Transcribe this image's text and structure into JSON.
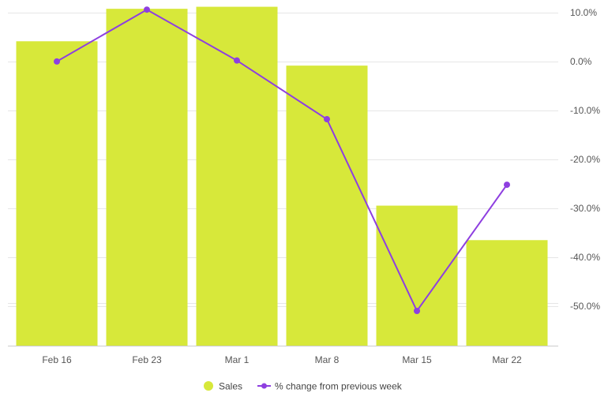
{
  "chart_data": {
    "type": "bar",
    "categories": [
      "Feb 16",
      "Feb 23",
      "Mar 1",
      "Mar 8",
      "Mar 15",
      "Mar 22"
    ],
    "series": [
      {
        "name": "Sales",
        "type": "bar",
        "color": "#d7e83a",
        "values": [
          7.5,
          8.3,
          8.35,
          6.9,
          3.45,
          2.6
        ]
      },
      {
        "name": "% change from previous week",
        "type": "line",
        "axis": "right",
        "color": "#8e3fe0",
        "values": [
          0.0,
          10.6,
          0.2,
          -11.8,
          -51.0,
          -25.2
        ]
      }
    ],
    "y_right": {
      "ticks": [
        10,
        0,
        -10,
        -20,
        -30,
        -40,
        -50
      ],
      "tick_labels": [
        "10.0%",
        "0.0%",
        "-10.0%",
        "-20.0%",
        "-30.0%",
        "-40.0%",
        "-50.0%"
      ],
      "ylim": [
        -58.1,
        11.6
      ]
    },
    "y_left": {
      "ylim": [
        0,
        8.4
      ],
      "labels_visible": false
    },
    "grid": true,
    "legend": {
      "position": "bottom",
      "entries": [
        "Sales",
        "% change from previous week"
      ]
    },
    "title": "",
    "xlabel": "",
    "ylabel": ""
  }
}
